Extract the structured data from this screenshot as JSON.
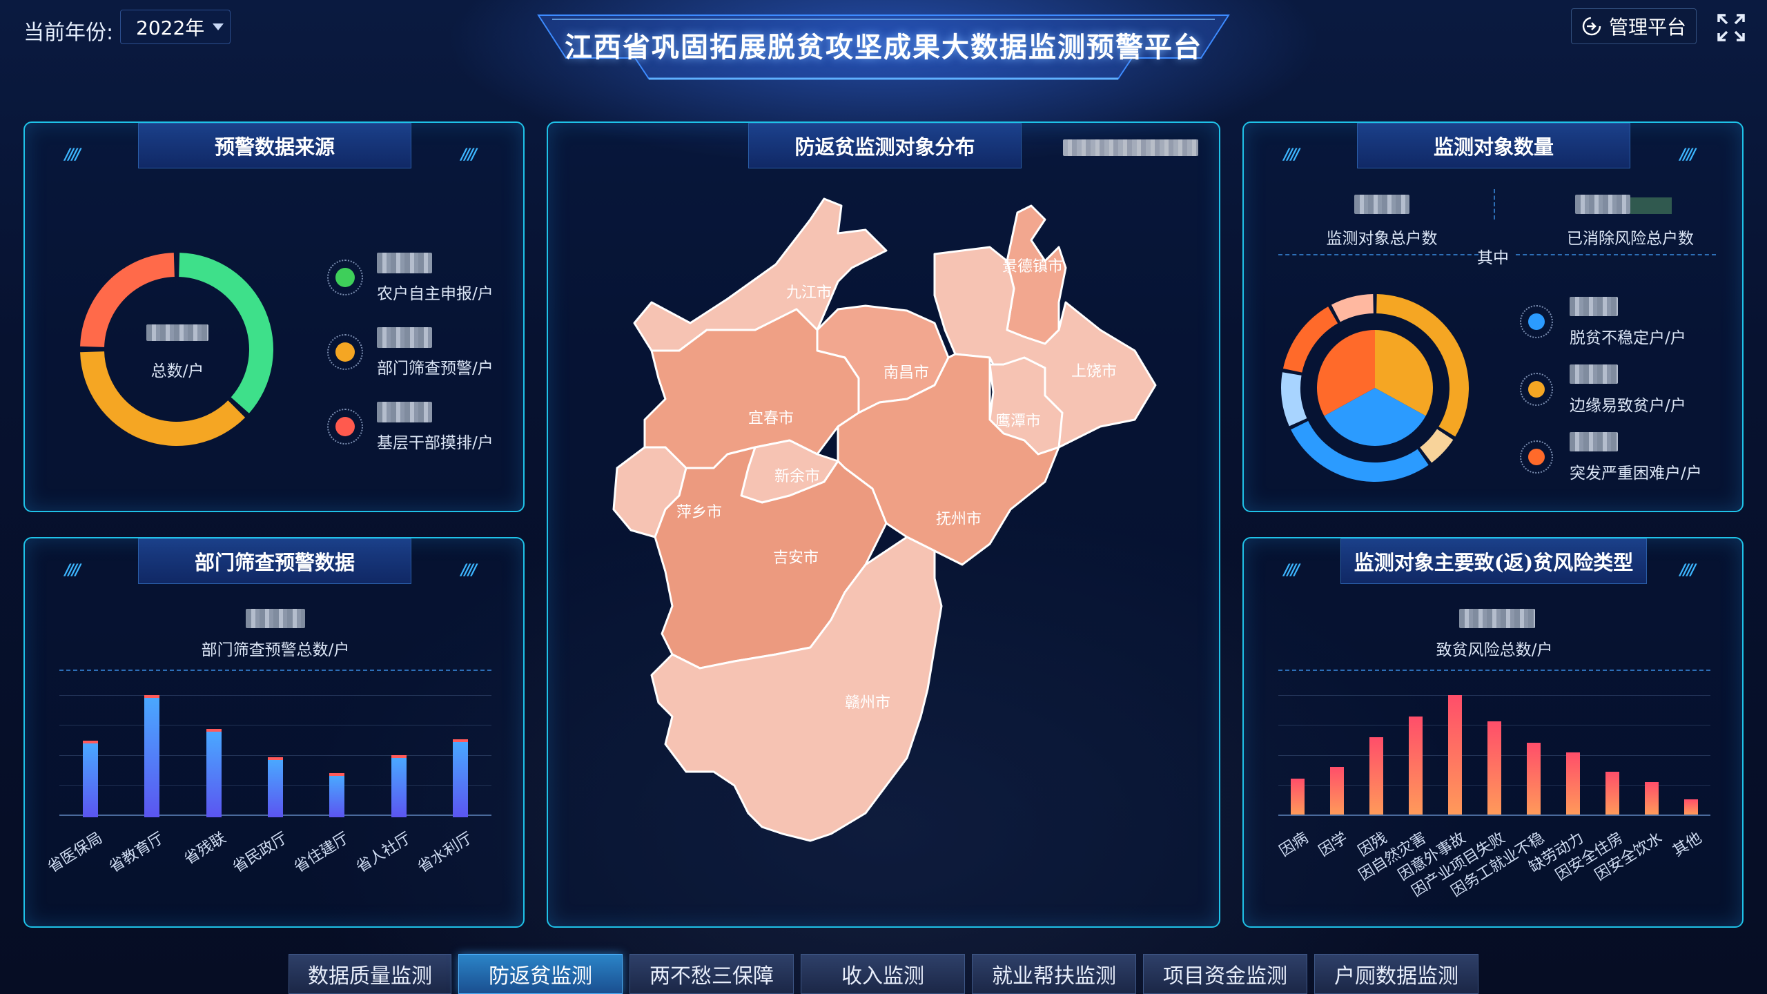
{
  "header": {
    "year_label": "当前年份:",
    "year_value": "2022年",
    "title": "江西省巩固拓展脱贫攻坚成果大数据监测预警平台",
    "admin_label": "管理平台"
  },
  "panel_source": {
    "title": "预警数据来源",
    "center_label": "总数/户",
    "legend": [
      {
        "label": "农户自主申报/户",
        "color": "#3ecf5a"
      },
      {
        "label": "部门筛查预警/户",
        "color": "#f5a623"
      },
      {
        "label": "基层干部摸排/户",
        "color": "#ff5a4e"
      }
    ],
    "donut": {
      "segments": [
        0.37,
        0.38,
        0.25
      ],
      "colors": [
        "#3ee08a",
        "#f5a623",
        "#ff6a4a"
      ]
    }
  },
  "panel_dept": {
    "title": "部门筛查预警数据",
    "total_label": "部门筛查预警总数/户",
    "chart_data": {
      "type": "bar",
      "categories": [
        "省医保局",
        "省教育厅",
        "省残联",
        "省民政厅",
        "省住建厅",
        "省人社厅",
        "省水利厅"
      ],
      "values": [
        62,
        100,
        72,
        48,
        35,
        50,
        63
      ],
      "ylim": [
        0,
        110
      ],
      "grid": true
    }
  },
  "panel_map": {
    "title": "防返贫监测对象分布",
    "cities": [
      {
        "name": "九江市",
        "color": "#f6c3b3"
      },
      {
        "name": "景德镇市",
        "color": "#f2a78f"
      },
      {
        "name": "南昌市",
        "color": "#f2a78f"
      },
      {
        "name": "上饶市",
        "color": "#f6c3b3"
      },
      {
        "name": "宜春市",
        "color": "#efa085"
      },
      {
        "name": "鹰潭市",
        "color": "#f6c3b3"
      },
      {
        "name": "新余市",
        "color": "#f6c3b3"
      },
      {
        "name": "萍乡市",
        "color": "#f6c3b3"
      },
      {
        "name": "抚州市",
        "color": "#efa085"
      },
      {
        "name": "吉安市",
        "color": "#ec9a7f"
      },
      {
        "name": "赣州市",
        "color": "#f6c3b3"
      }
    ]
  },
  "panel_count": {
    "title": "监测对象数量",
    "total_label": "监测对象总户数",
    "eliminated_label": "已消除风险总户数",
    "middle_label": "其中",
    "legend": [
      {
        "label": "脱贫不稳定户/户",
        "color": "#2b9bff"
      },
      {
        "label": "边缘易致贫户/户",
        "color": "#f5a623"
      },
      {
        "label": "突发严重困难户/户",
        "color": "#ff6a2a"
      }
    ],
    "outer": {
      "segments": [
        0.34,
        0.06,
        0.28,
        0.1,
        0.14,
        0.08
      ],
      "colors": [
        "#f5a623",
        "#f8d39a",
        "#2b9bff",
        "#a8d4ff",
        "#ff6a2a",
        "#ffb8a0"
      ]
    },
    "inner": {
      "segments": [
        0.33,
        0.34,
        0.33
      ],
      "colors": [
        "#f5a623",
        "#2b9bff",
        "#ff6a2a"
      ]
    }
  },
  "panel_risk": {
    "title": "监测对象主要致(返)贫风险类型",
    "total_label": "致贫风险总数/户",
    "chart_data": {
      "type": "bar",
      "categories": [
        "因病",
        "因学",
        "因残",
        "因自然灾害",
        "因意外事故",
        "因产业项目失败",
        "因务工就业不稳",
        "缺劳动力",
        "因安全住房",
        "因安全饮水",
        "其他"
      ],
      "values": [
        30,
        40,
        65,
        82,
        100,
        78,
        60,
        52,
        36,
        27,
        13
      ],
      "ylim": [
        0,
        110
      ],
      "grid": true
    }
  },
  "tabs": [
    {
      "label": "数据质量监测",
      "active": false
    },
    {
      "label": "防返贫监测",
      "active": true
    },
    {
      "label": "两不愁三保障",
      "active": false
    },
    {
      "label": "收入监测",
      "active": false
    },
    {
      "label": "就业帮扶监测",
      "active": false
    },
    {
      "label": "项目资金监测",
      "active": false
    },
    {
      "label": "户厕数据监测",
      "active": false
    }
  ]
}
